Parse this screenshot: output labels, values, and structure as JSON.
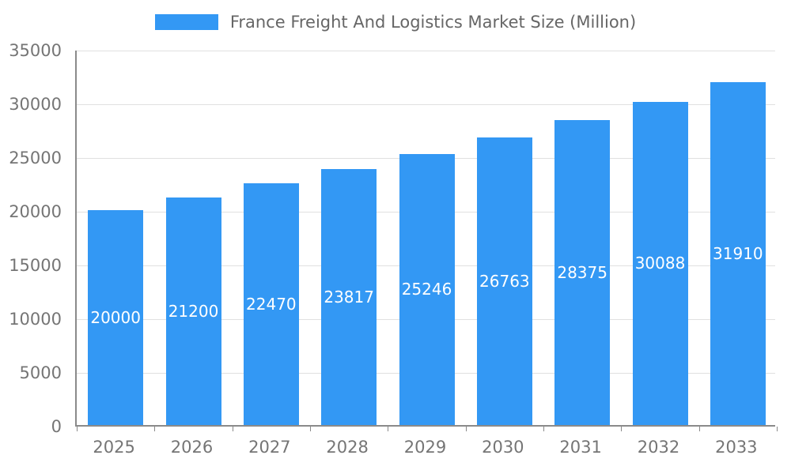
{
  "chart_data": {
    "type": "bar",
    "title": "France Freight And Logistics Market Size (Million)",
    "categories": [
      "2025",
      "2026",
      "2027",
      "2028",
      "2029",
      "2030",
      "2031",
      "2032",
      "2033"
    ],
    "values": [
      20000,
      21200,
      22470,
      23817,
      25246,
      26763,
      28375,
      30088,
      31910
    ],
    "xlabel": "",
    "ylabel": "",
    "ylim": [
      0,
      35000
    ],
    "ytick_step": 5000,
    "grid": true,
    "legend_position": "top",
    "value_labels": "inside-bar-centered",
    "colors": {
      "bar": "#3398f4",
      "bar_label": "#ffffff",
      "axis_text": "#757575",
      "title_text": "#666666",
      "gridline": "#e0e0e0",
      "axis_line": "#8a8a8a",
      "background": "#ffffff"
    }
  }
}
